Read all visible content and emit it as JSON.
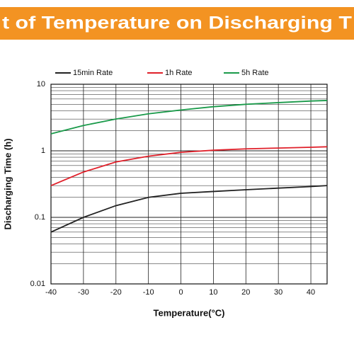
{
  "chart_data": {
    "type": "line",
    "title": "t of Temperature on Discharging T",
    "x_label": "Temperature(°C)",
    "y_label": "Discharging Time (h)",
    "x": [
      -40,
      -30,
      -20,
      -10,
      0,
      10,
      20,
      30,
      40,
      45
    ],
    "series": [
      {
        "name": "15min Rate",
        "color": "#222222",
        "values": [
          0.06,
          0.1,
          0.15,
          0.2,
          0.23,
          0.245,
          0.26,
          0.275,
          0.29,
          0.3
        ]
      },
      {
        "name": "1h Rate",
        "color": "#e0202a",
        "values": [
          0.3,
          0.48,
          0.68,
          0.83,
          0.95,
          1.02,
          1.07,
          1.1,
          1.13,
          1.15
        ]
      },
      {
        "name": "5h Rate",
        "color": "#1a9a4a",
        "values": [
          1.8,
          2.4,
          3.0,
          3.6,
          4.1,
          4.6,
          5.0,
          5.3,
          5.6,
          5.7
        ]
      }
    ],
    "xlim": [
      -40,
      45
    ],
    "xticks": [
      -40,
      -30,
      -20,
      -10,
      0,
      10,
      20,
      30,
      40
    ],
    "ylim": [
      0.01,
      10
    ],
    "yticks": [
      0.01,
      0.1,
      1,
      10
    ],
    "log_y": true,
    "grid": true,
    "minor_grid": true,
    "legend": "top"
  }
}
